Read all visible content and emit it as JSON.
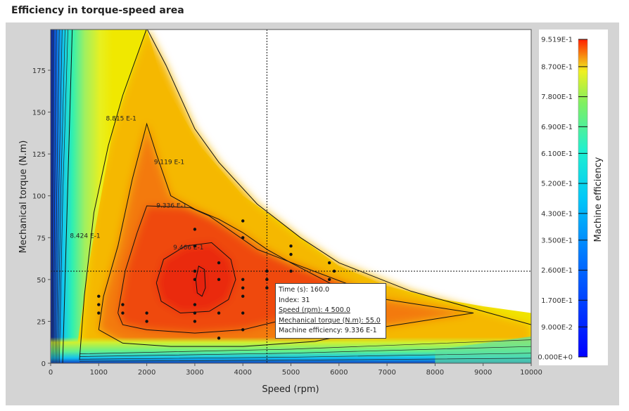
{
  "title": "Efficiency in torque-speed area",
  "chart_data": {
    "type": "heatmap",
    "subtype": "contour",
    "xlabel": "Speed (rpm)",
    "ylabel": "Mechanical torque (N.m)",
    "xlim": [
      0,
      10000
    ],
    "ylim": [
      0,
      200
    ],
    "xticks": [
      0,
      1000,
      2000,
      3000,
      4000,
      5000,
      6000,
      7000,
      8000,
      9000,
      10000
    ],
    "yticks": [
      0,
      25,
      50,
      75,
      100,
      125,
      150,
      175
    ],
    "envelope": [
      [
        0,
        200
      ],
      [
        2000,
        200
      ],
      [
        2300,
        170
      ],
      [
        3100,
        130
      ],
      [
        4000,
        100
      ],
      [
        4500,
        90
      ],
      [
        5200,
        75
      ],
      [
        6000,
        58
      ],
      [
        7000,
        46
      ],
      [
        8000,
        39
      ],
      [
        9000,
        34
      ],
      [
        10000,
        30
      ],
      [
        10000,
        0
      ],
      [
        0,
        0
      ]
    ],
    "contours": [
      {
        "label": "8.424 E-1",
        "level": 0.8424,
        "label_at": [
          400,
          75
        ],
        "points": [
          [
            250,
            0
          ],
          [
            300,
            50
          ],
          [
            350,
            100
          ],
          [
            400,
            150
          ],
          [
            450,
            200
          ]
        ]
      },
      {
        "label": "8.815 E-1",
        "level": 0.8815,
        "label_at": [
          1150,
          145
        ],
        "points": [
          [
            600,
            2
          ],
          [
            700,
            40
          ],
          [
            900,
            90
          ],
          [
            1200,
            130
          ],
          [
            1500,
            160
          ],
          [
            2000,
            200
          ],
          [
            2400,
            178
          ],
          [
            3000,
            140
          ],
          [
            3500,
            120
          ],
          [
            4300,
            95
          ],
          [
            5200,
            75
          ],
          [
            6000,
            60
          ],
          [
            7500,
            43
          ],
          [
            10000,
            23
          ]
        ]
      },
      {
        "label": "9.119 E-1",
        "level": 0.9119,
        "label_at": [
          2150,
          119
        ],
        "points": [
          [
            1000,
            20
          ],
          [
            1100,
            40
          ],
          [
            1400,
            70
          ],
          [
            1700,
            110
          ],
          [
            2000,
            143
          ],
          [
            2200,
            125
          ],
          [
            2500,
            100
          ],
          [
            3000,
            92
          ],
          [
            3500,
            86
          ],
          [
            4000,
            78
          ],
          [
            4500,
            68
          ],
          [
            5000,
            60
          ],
          [
            6000,
            45
          ],
          [
            7000,
            38
          ],
          [
            8800,
            30
          ],
          [
            7000,
            22
          ],
          [
            5500,
            13
          ],
          [
            4000,
            10
          ],
          [
            2500,
            10
          ],
          [
            1500,
            12
          ],
          [
            1000,
            20
          ]
        ]
      },
      {
        "label": "9.336 E-1",
        "level": 0.9336,
        "label_at": [
          2200,
          93
        ],
        "points": [
          [
            1400,
            30
          ],
          [
            1550,
            55
          ],
          [
            1800,
            78
          ],
          [
            2000,
            94
          ],
          [
            2900,
            93
          ],
          [
            3300,
            88
          ],
          [
            3800,
            78
          ],
          [
            4300,
            68
          ],
          [
            5200,
            58
          ],
          [
            6400,
            45
          ],
          [
            6000,
            35
          ],
          [
            5000,
            27
          ],
          [
            4000,
            20
          ],
          [
            3000,
            18
          ],
          [
            2000,
            20
          ],
          [
            1500,
            23
          ],
          [
            1400,
            30
          ]
        ]
      },
      {
        "label": "9.466 E-1",
        "level": 0.9466,
        "label_at": [
          2550,
          68
        ],
        "points": [
          [
            2200,
            48
          ],
          [
            2350,
            62
          ],
          [
            2800,
            70
          ],
          [
            3350,
            72
          ],
          [
            3750,
            62
          ],
          [
            3850,
            50
          ],
          [
            3700,
            38
          ],
          [
            3300,
            31
          ],
          [
            2700,
            30
          ],
          [
            2300,
            37
          ],
          [
            2200,
            48
          ]
        ]
      },
      {
        "label": "",
        "level": 0.95,
        "points": [
          [
            3020,
            50
          ],
          [
            3080,
            58
          ],
          [
            3200,
            56
          ],
          [
            3220,
            45
          ],
          [
            3150,
            40
          ],
          [
            3050,
            42
          ],
          [
            3020,
            50
          ]
        ]
      }
    ],
    "points": [
      [
        1000,
        40
      ],
      [
        1000,
        35
      ],
      [
        1000,
        30
      ],
      [
        1500,
        35
      ],
      [
        1500,
        30
      ],
      [
        2000,
        30
      ],
      [
        2000,
        25
      ],
      [
        3000,
        80
      ],
      [
        3000,
        70
      ],
      [
        3000,
        55
      ],
      [
        3000,
        50
      ],
      [
        3000,
        35
      ],
      [
        3000,
        30
      ],
      [
        3000,
        25
      ],
      [
        3500,
        60
      ],
      [
        3500,
        50
      ],
      [
        3500,
        30
      ],
      [
        3500,
        15
      ],
      [
        4000,
        85
      ],
      [
        4000,
        75
      ],
      [
        4000,
        50
      ],
      [
        4000,
        45
      ],
      [
        4000,
        40
      ],
      [
        4000,
        30
      ],
      [
        4000,
        20
      ],
      [
        4500,
        55
      ],
      [
        4500,
        50
      ],
      [
        4500,
        45
      ],
      [
        5000,
        70
      ],
      [
        5000,
        65
      ],
      [
        5000,
        55
      ],
      [
        5800,
        60
      ],
      [
        5900,
        55
      ],
      [
        5800,
        50
      ]
    ],
    "crosshair": [
      4500,
      55
    ],
    "colorbar": {
      "label": "Machine efficiency",
      "min": 0,
      "max": 0.9519,
      "ticks": [
        "9.519E-1",
        "8.700E-1",
        "7.800E-1",
        "6.900E-1",
        "6.100E-1",
        "5.200E-1",
        "4.300E-1",
        "3.500E-1",
        "2.600E-1",
        "1.700E-1",
        "9.000E-2",
        "0.000E+0"
      ],
      "tick_values": [
        0.9519,
        0.87,
        0.78,
        0.69,
        0.61,
        0.52,
        0.43,
        0.35,
        0.26,
        0.17,
        0.09,
        0
      ]
    }
  },
  "tooltip": {
    "time": "Time (s): 160.0",
    "index": "Index: 31",
    "speed": "Speed (rpm): 4 500.0",
    "torque": "Mechanical torque (N.m): 55.0",
    "efficiency": "Machine efficiency: 9.336 E-1"
  }
}
